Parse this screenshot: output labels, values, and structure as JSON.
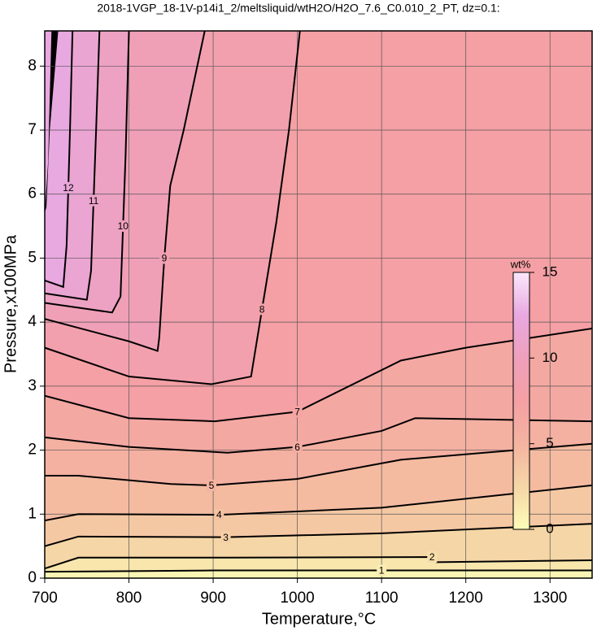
{
  "chart_data": {
    "type": "contour",
    "title": "2018-1VGP_18-1V-p14i1_2/meltsliquid/wtH2O/H2O_7.6_C0.010_2_PT, dz=0.1:",
    "xlabel": "Temperature,°C",
    "ylabel": "Pressure,x100MPa",
    "xlim": [
      700,
      1350
    ],
    "ylim": [
      0,
      8.55
    ],
    "xticks": [
      700,
      800,
      900,
      1000,
      1100,
      1200,
      1300
    ],
    "yticks": [
      0,
      1,
      2,
      3,
      4,
      5,
      6,
      7,
      8
    ],
    "grid": true,
    "colorbar": {
      "label": "wt%",
      "zlim": [
        0,
        15
      ],
      "ticks": [
        0,
        5,
        10,
        15
      ],
      "colormap": [
        "#fdfdb8",
        "#f5d6a6",
        "#f4b4a0",
        "#f4a0a4",
        "#eea0bc",
        "#e8a8e0",
        "#fbe8fb"
      ]
    },
    "contours": [
      {
        "level": 1,
        "x": [
          700,
          900,
          1100,
          1350
        ],
        "y": [
          0.1,
          0.12,
          0.12,
          0.12
        ]
      },
      {
        "level": 2,
        "x": [
          700,
          740,
          920,
          1160,
          1165,
          1350
        ],
        "y": [
          0.15,
          0.32,
          0.32,
          0.33,
          0.25,
          0.28
        ]
      },
      {
        "level": 3,
        "x": [
          700,
          740,
          915,
          1100,
          1350
        ],
        "y": [
          0.5,
          0.65,
          0.64,
          0.7,
          0.85
        ]
      },
      {
        "level": 4,
        "x": [
          700,
          740,
          907,
          1100,
          1350
        ],
        "y": [
          0.9,
          1.0,
          0.99,
          1.1,
          1.45
        ]
      },
      {
        "level": 5,
        "x": [
          700,
          740,
          850,
          898,
          1000,
          1123,
          1350
        ],
        "y": [
          1.6,
          1.6,
          1.47,
          1.45,
          1.55,
          1.85,
          2.1
        ]
      },
      {
        "level": 6,
        "x": [
          700,
          800,
          917,
          1000,
          1100,
          1140,
          1350
        ],
        "y": [
          2.2,
          2.05,
          1.96,
          2.05,
          2.3,
          2.5,
          2.45
        ]
      },
      {
        "level": 7,
        "x": [
          700,
          800,
          902,
          1000,
          1123,
          1200,
          1350
        ],
        "y": [
          2.85,
          2.5,
          2.45,
          2.6,
          3.4,
          3.6,
          3.9
        ]
      },
      {
        "level": 8,
        "x": [
          700,
          800,
          898,
          945,
          958,
          968,
          975,
          990,
          1003
        ],
        "y": [
          3.6,
          3.15,
          3.03,
          3.15,
          4.2,
          5.0,
          5.56,
          7.0,
          8.55
        ]
      },
      {
        "level": 9,
        "x": [
          700,
          800,
          834,
          836,
          842,
          849,
          865,
          890
        ],
        "y": [
          4.05,
          3.7,
          3.55,
          3.76,
          5.0,
          6.13,
          7.0,
          8.55
        ]
      },
      {
        "level": 10,
        "x": [
          700,
          780,
          790,
          793,
          796,
          800
        ],
        "y": [
          4.3,
          4.15,
          4.4,
          5.5,
          6.6,
          8.55
        ]
      },
      {
        "level": 11,
        "x": [
          700,
          750,
          755,
          758,
          761,
          765
        ],
        "y": [
          4.45,
          4.35,
          4.8,
          5.9,
          7.0,
          8.55
        ]
      },
      {
        "level": 12,
        "x": [
          700,
          722,
          726,
          728,
          730,
          733
        ],
        "y": [
          4.65,
          4.55,
          5.2,
          6.1,
          7.0,
          8.55
        ]
      }
    ]
  }
}
